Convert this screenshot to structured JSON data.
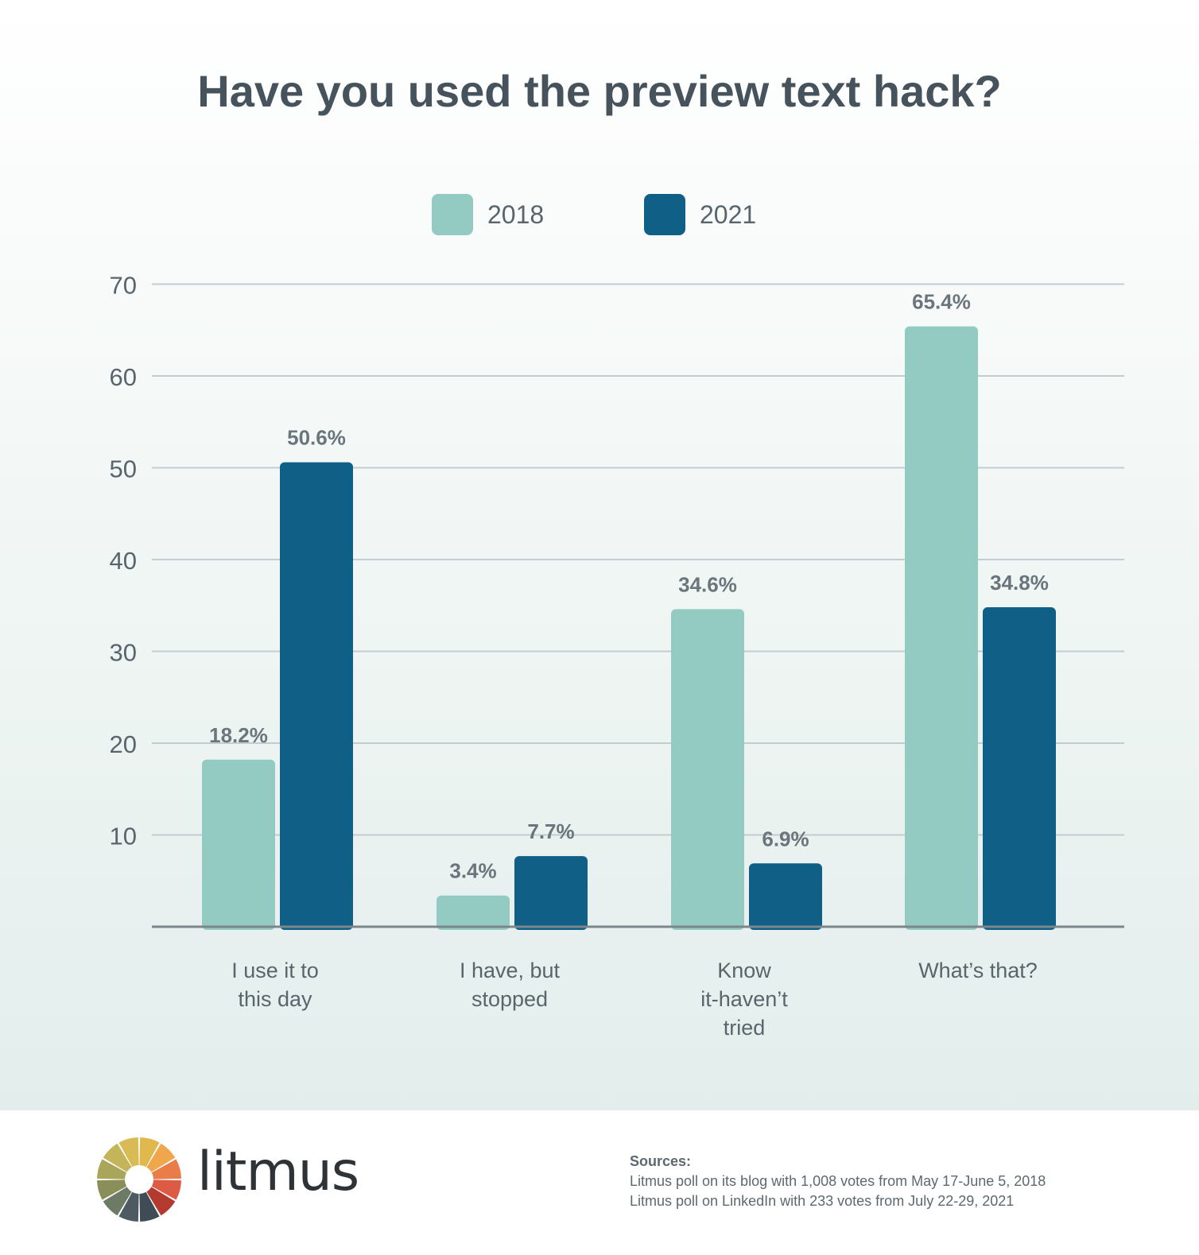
{
  "chart_data": {
    "type": "bar",
    "title": "Have you used the preview text hack?",
    "categories": [
      [
        "I use it to",
        "this day"
      ],
      [
        "I have, but",
        "stopped"
      ],
      [
        "Know",
        "it-haven’t",
        "tried"
      ],
      [
        "What’s that?"
      ]
    ],
    "series": [
      {
        "name": "2018",
        "values": [
          18.2,
          3.4,
          34.6,
          65.4
        ],
        "labels": [
          "18.2%",
          "3.4%",
          "34.6%",
          "65.4%"
        ]
      },
      {
        "name": "2021",
        "values": [
          50.6,
          7.7,
          6.9,
          34.8
        ],
        "labels": [
          "50.6%",
          "7.7%",
          "6.9%",
          "34.8%"
        ]
      }
    ],
    "yticks": [
      10,
      20,
      30,
      40,
      50,
      60,
      70
    ],
    "ylim": [
      0,
      70
    ],
    "grid": true,
    "legend_position": "top-center"
  },
  "colors": {
    "series_2018": "#93cac2",
    "series_2021": "#0f5f87",
    "grid": "#c3ccd0",
    "axis": "#7c868c",
    "text": "#59656d",
    "title": "#46535c"
  },
  "footer": {
    "brand": "litmus",
    "logo_icon": "litmus-color-wheel-icon",
    "sources_heading": "Sources:",
    "sources": [
      "Litmus poll on its blog with 1,008 votes from May 17-June 5, 2018",
      "Litmus poll on LinkedIn with 233 votes from July 22-29, 2021"
    ]
  }
}
